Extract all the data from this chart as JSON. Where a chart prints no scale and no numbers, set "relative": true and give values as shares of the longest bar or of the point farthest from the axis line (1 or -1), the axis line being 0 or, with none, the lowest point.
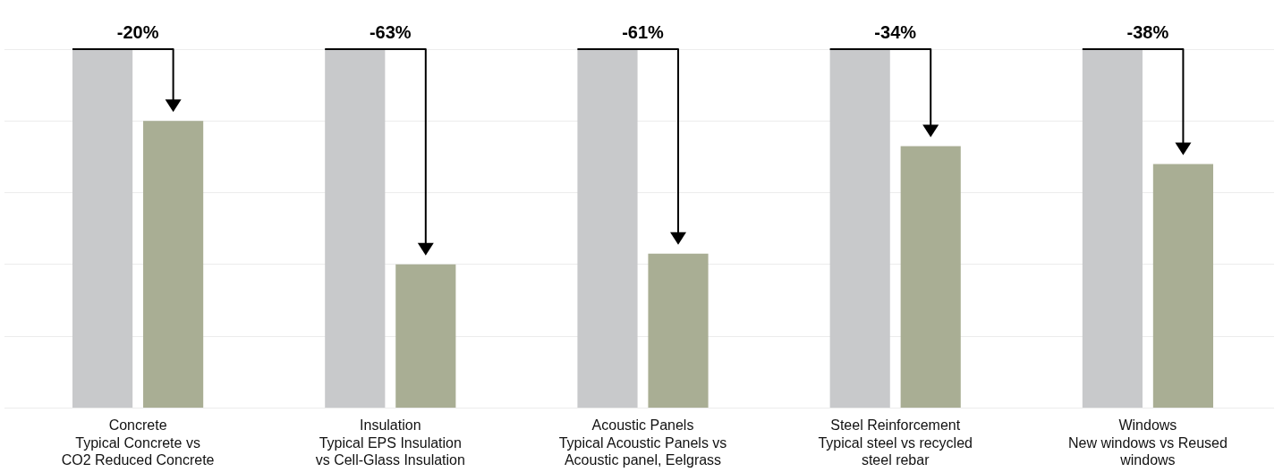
{
  "chart_data": {
    "type": "bar",
    "relative": true,
    "grid": "y",
    "legend": false,
    "categories": [
      "Concrete\nTypical Concrete vs\nCO2 Reduced Concrete",
      "Insulation\nTypical EPS Insulation\nvs Cell-Glass Insulation",
      "Acoustic Panels\nTypical Acoustic Panels vs\nAcoustic panel, Eelgrass",
      "Steel Reinforcement\nTypical steel vs recycled\nsteel rebar",
      "Windows\nNew windows vs Reused\nwindows"
    ],
    "series": [
      {
        "color": "#c8c9cb",
        "values": [
          1,
          1,
          1,
          1,
          1
        ]
      },
      {
        "color": "#a9ae94",
        "values": [
          0.8,
          0.4,
          0.43,
          0.73,
          0.68
        ]
      }
    ],
    "annotations": [
      "-20%",
      "-63%",
      "-61%",
      "-34%",
      "-38%"
    ]
  }
}
